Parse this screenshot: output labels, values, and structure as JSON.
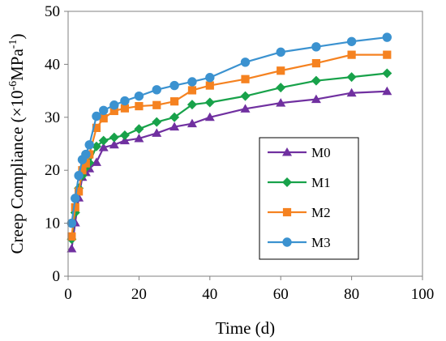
{
  "chart_data": {
    "type": "line",
    "title": "",
    "xlabel": "Time (d)",
    "ylabel_main": "Creep Compliance (×10",
    "ylabel_exp1": "-6",
    "ylabel_mid": "MPa",
    "ylabel_exp2": "-1",
    "ylabel_end": ")",
    "xlim": [
      0,
      100
    ],
    "ylim": [
      0,
      50
    ],
    "xticks": [
      0,
      20,
      40,
      60,
      80,
      100
    ],
    "yticks": [
      0,
      10,
      20,
      30,
      40,
      50
    ],
    "grid": false,
    "legend_position": "right-middle",
    "series": [
      {
        "name": "M0",
        "marker": "triangle",
        "color": "#7030A0",
        "x": [
          1,
          2,
          3,
          4,
          5,
          6,
          8,
          10,
          13,
          16,
          20,
          25,
          30,
          35,
          40,
          50,
          60,
          70,
          80,
          90
        ],
        "y": [
          5.2,
          10.1,
          14.8,
          18.7,
          19.6,
          20.3,
          21.5,
          24.3,
          24.8,
          25.6,
          26.0,
          27.0,
          28.2,
          28.8,
          30.0,
          31.6,
          32.7,
          33.4,
          34.6,
          34.9
        ]
      },
      {
        "name": "M1",
        "marker": "diamond",
        "color": "#18A24A",
        "x": [
          1,
          2,
          3,
          4,
          5,
          6,
          8,
          10,
          13,
          16,
          20,
          25,
          30,
          35,
          40,
          50,
          60,
          70,
          80,
          90
        ],
        "y": [
          7.0,
          12.0,
          16.6,
          19.0,
          20.5,
          21.4,
          24.5,
          25.6,
          26.2,
          26.6,
          27.8,
          29.1,
          30.0,
          32.4,
          32.8,
          34.0,
          35.6,
          36.9,
          37.6,
          38.3
        ]
      },
      {
        "name": "M2",
        "marker": "square",
        "color": "#F58220",
        "x": [
          1,
          2,
          3,
          4,
          5,
          6,
          8,
          10,
          13,
          16,
          20,
          25,
          30,
          35,
          40,
          50,
          60,
          70,
          80,
          90
        ],
        "y": [
          7.5,
          13.0,
          16.0,
          20.0,
          21.3,
          23.0,
          28.0,
          29.8,
          31.2,
          31.7,
          32.1,
          32.3,
          33.0,
          35.1,
          36.0,
          37.2,
          38.8,
          40.2,
          41.8,
          41.8
        ]
      },
      {
        "name": "M3",
        "marker": "circle",
        "color": "#3B92D0",
        "x": [
          1,
          2,
          3,
          4,
          5,
          6,
          8,
          10,
          13,
          16,
          20,
          25,
          30,
          35,
          40,
          50,
          60,
          70,
          80,
          90
        ],
        "y": [
          10.0,
          14.7,
          19.0,
          22.0,
          23.0,
          24.8,
          30.2,
          31.3,
          32.3,
          33.1,
          34.0,
          35.2,
          36.0,
          36.7,
          37.5,
          40.4,
          42.3,
          43.3,
          44.3,
          45.1
        ]
      }
    ]
  }
}
